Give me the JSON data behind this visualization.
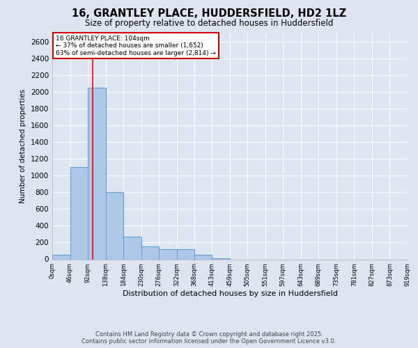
{
  "title": "16, GRANTLEY PLACE, HUDDERSFIELD, HD2 1LZ",
  "subtitle": "Size of property relative to detached houses in Huddersfield",
  "xlabel": "Distribution of detached houses by size in Huddersfield",
  "ylabel": "Number of detached properties",
  "bar_values": [
    50,
    1100,
    2050,
    800,
    270,
    150,
    120,
    120,
    50,
    15,
    0,
    0,
    0,
    0,
    0,
    0,
    0,
    0,
    0,
    0
  ],
  "bin_edges": [
    0,
    46,
    92,
    138,
    184,
    230,
    276,
    322,
    368,
    413,
    459,
    505,
    551,
    597,
    643,
    689,
    735,
    781,
    827,
    873,
    919
  ],
  "bin_labels": [
    "0sqm",
    "46sqm",
    "92sqm",
    "138sqm",
    "184sqm",
    "230sqm",
    "276sqm",
    "322sqm",
    "368sqm",
    "413sqm",
    "459sqm",
    "505sqm",
    "551sqm",
    "597sqm",
    "643sqm",
    "689sqm",
    "735sqm",
    "781sqm",
    "827sqm",
    "873sqm",
    "919sqm"
  ],
  "bar_color": "#aec6e8",
  "bar_edge_color": "#5a9fd4",
  "background_color": "#dde5f0",
  "grid_color": "#ffffff",
  "red_line_x": 104,
  "annotation_text": "16 GRANTLEY PLACE: 104sqm\n← 37% of detached houses are smaller (1,652)\n63% of semi-detached houses are larger (2,814) →",
  "annotation_box_color": "#ffffff",
  "annotation_box_edge": "#cc0000",
  "ylim": [
    0,
    2700
  ],
  "yticks": [
    0,
    200,
    400,
    600,
    800,
    1000,
    1200,
    1400,
    1600,
    1800,
    2000,
    2200,
    2400,
    2600
  ],
  "footer_line1": "Contains HM Land Registry data © Crown copyright and database right 2025.",
  "footer_line2": "Contains public sector information licensed under the Open Government Licence v3.0."
}
